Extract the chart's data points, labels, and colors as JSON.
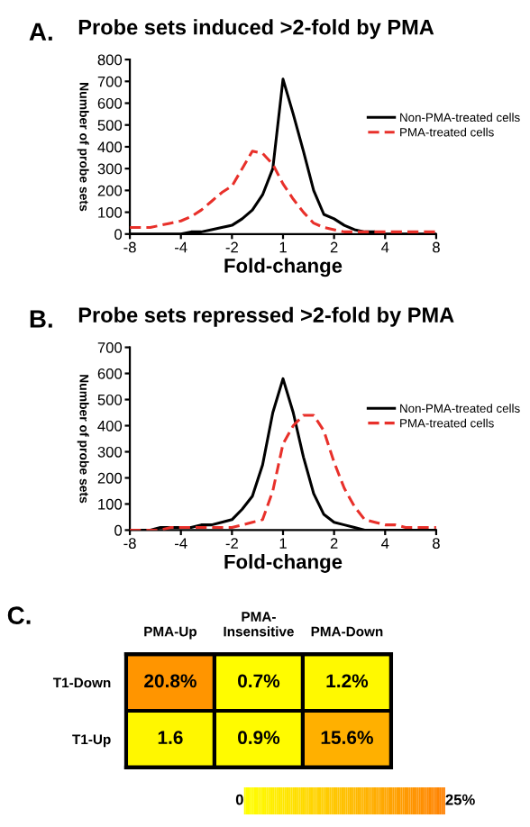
{
  "chart_data": [
    {
      "type": "line",
      "title": "Probe sets induced >2-fold by PMA",
      "annotations": [
        "A."
      ],
      "xlabel": "Fold-change",
      "ylabel": "Number of probe sets",
      "categories": [
        "-8",
        null,
        null,
        null,
        null,
        "-4",
        null,
        null,
        null,
        null,
        "-2",
        null,
        null,
        null,
        null,
        "1",
        null,
        null,
        null,
        null,
        "2",
        null,
        null,
        null,
        null,
        "4",
        null,
        null,
        null,
        null,
        "8"
      ],
      "ylim": [
        0,
        800
      ],
      "yticks": [
        0,
        100,
        200,
        300,
        400,
        500,
        600,
        700,
        800
      ],
      "grid": false,
      "legend": "right",
      "marker": "none",
      "series": [
        {
          "name": "Non-PMA-treated cells",
          "color": "#000000",
          "line_style": "solid",
          "values": [
            0,
            0,
            0,
            0,
            0,
            0,
            10,
            10,
            20,
            30,
            40,
            70,
            110,
            180,
            300,
            710,
            550,
            380,
            200,
            90,
            70,
            40,
            20,
            10,
            10,
            0,
            0,
            0,
            0,
            0,
            0
          ]
        },
        {
          "name": "PMA-treated cells",
          "color": "#e8302a",
          "line_style": "dashed",
          "values": [
            30,
            30,
            30,
            40,
            50,
            60,
            80,
            110,
            150,
            190,
            220,
            300,
            380,
            370,
            320,
            230,
            160,
            100,
            50,
            30,
            20,
            10,
            10,
            10,
            10,
            10,
            10,
            10,
            10,
            10,
            10
          ]
        }
      ]
    },
    {
      "type": "line",
      "title": "Probe sets repressed >2-fold by PMA",
      "annotations": [
        "B."
      ],
      "xlabel": "Fold-change",
      "ylabel": "Number of probe sets",
      "categories": [
        "-8",
        null,
        null,
        null,
        null,
        "-4",
        null,
        null,
        null,
        null,
        "-2",
        null,
        null,
        null,
        null,
        "1",
        null,
        null,
        null,
        null,
        "2",
        null,
        null,
        null,
        null,
        "4",
        null,
        null,
        null,
        null,
        "8"
      ],
      "ylim": [
        0,
        700
      ],
      "yticks": [
        0,
        100,
        200,
        300,
        400,
        500,
        600,
        700
      ],
      "grid": false,
      "legend": "right",
      "marker": "none",
      "series": [
        {
          "name": "Non-PMA-treated cells",
          "color": "#000000",
          "line_style": "solid",
          "values": [
            0,
            0,
            0,
            10,
            10,
            10,
            10,
            20,
            20,
            30,
            40,
            80,
            130,
            250,
            450,
            580,
            450,
            280,
            140,
            60,
            30,
            20,
            10,
            0,
            0,
            0,
            0,
            0,
            0,
            0,
            0
          ]
        },
        {
          "name": "PMA-treated cells",
          "color": "#e8302a",
          "line_style": "dashed",
          "values": [
            0,
            0,
            0,
            0,
            10,
            10,
            10,
            10,
            10,
            10,
            10,
            20,
            30,
            40,
            150,
            330,
            400,
            440,
            440,
            380,
            260,
            160,
            90,
            40,
            30,
            20,
            20,
            10,
            10,
            10,
            10
          ]
        }
      ]
    },
    {
      "type": "heatmap",
      "annotations": [
        "C."
      ],
      "categories": [
        "PMA-Up",
        "PMA-\nInsensitive",
        "PMA-Down"
      ],
      "y_categories": [
        "T1-Down",
        "T1-Up"
      ],
      "cells": [
        [
          20.8,
          0.7,
          1.2
        ],
        [
          1.6,
          0.9,
          15.6
        ]
      ],
      "cell_labels": [
        [
          "20.8%",
          "0.7%",
          "1.2%"
        ],
        [
          "1.6",
          "0.9%",
          "15.6%"
        ]
      ],
      "clim": [
        0,
        25
      ],
      "cticks": [
        {
          "value": 0,
          "label": "0"
        },
        {
          "value": 25,
          "label": "25%"
        }
      ],
      "colors": [
        "#ffff00",
        "#ff8000"
      ]
    }
  ]
}
